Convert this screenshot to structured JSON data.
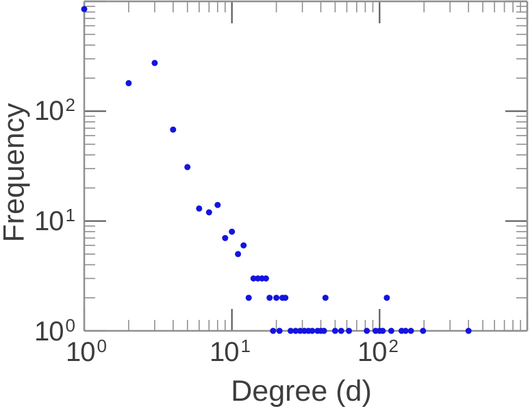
{
  "figure": {
    "background_color": "#ffffff",
    "text_color": "#3d3d3d",
    "box_color": "#8f8f8f",
    "major_tick_color": "#5a5a5a",
    "minor_tick_color": "#8f8f8f",
    "marker_color": "#1414e0"
  },
  "chart_data": {
    "type": "scatter",
    "title": "",
    "xlabel": "Degree (d)",
    "ylabel": "Frequency",
    "x_scale": "log",
    "y_scale": "log",
    "xlim": [
      1,
      1000
    ],
    "ylim": [
      1,
      1000
    ],
    "grid": false,
    "legend": false,
    "marker": "filled-circle",
    "x_ticks": [
      {
        "base": "10",
        "exponent": "0"
      },
      {
        "base": "10",
        "exponent": "1"
      },
      {
        "base": "10",
        "exponent": "2"
      }
    ],
    "y_ticks": [
      {
        "base": "10",
        "exponent": "0"
      },
      {
        "base": "10",
        "exponent": "1"
      },
      {
        "base": "10",
        "exponent": "2"
      }
    ],
    "point_format": [
      "degree",
      "frequency"
    ],
    "points": [
      [
        1,
        850
      ],
      [
        2,
        180
      ],
      [
        3,
        275
      ],
      [
        4,
        68
      ],
      [
        5,
        31
      ],
      [
        6,
        13
      ],
      [
        7,
        12
      ],
      [
        8,
        14
      ],
      [
        9,
        7
      ],
      [
        10,
        8
      ],
      [
        11,
        5
      ],
      [
        12,
        6
      ],
      [
        13,
        2
      ],
      [
        14,
        3
      ],
      [
        15,
        3
      ],
      [
        16,
        3
      ],
      [
        17,
        3
      ],
      [
        18,
        2
      ],
      [
        19,
        1
      ],
      [
        20,
        2
      ],
      [
        21,
        1
      ],
      [
        22,
        2
      ],
      [
        23,
        2
      ],
      [
        25,
        1
      ],
      [
        27,
        1
      ],
      [
        29,
        1
      ],
      [
        31,
        1
      ],
      [
        33,
        1
      ],
      [
        35,
        1
      ],
      [
        38,
        1
      ],
      [
        40,
        1
      ],
      [
        42,
        1
      ],
      [
        43,
        2
      ],
      [
        50,
        1
      ],
      [
        55,
        1
      ],
      [
        62,
        1
      ],
      [
        82,
        1
      ],
      [
        94,
        1
      ],
      [
        100,
        1
      ],
      [
        105,
        1
      ],
      [
        112,
        2
      ],
      [
        120,
        1
      ],
      [
        141,
        1
      ],
      [
        150,
        1
      ],
      [
        163,
        1
      ],
      [
        197,
        1
      ],
      [
        400,
        1
      ]
    ]
  }
}
